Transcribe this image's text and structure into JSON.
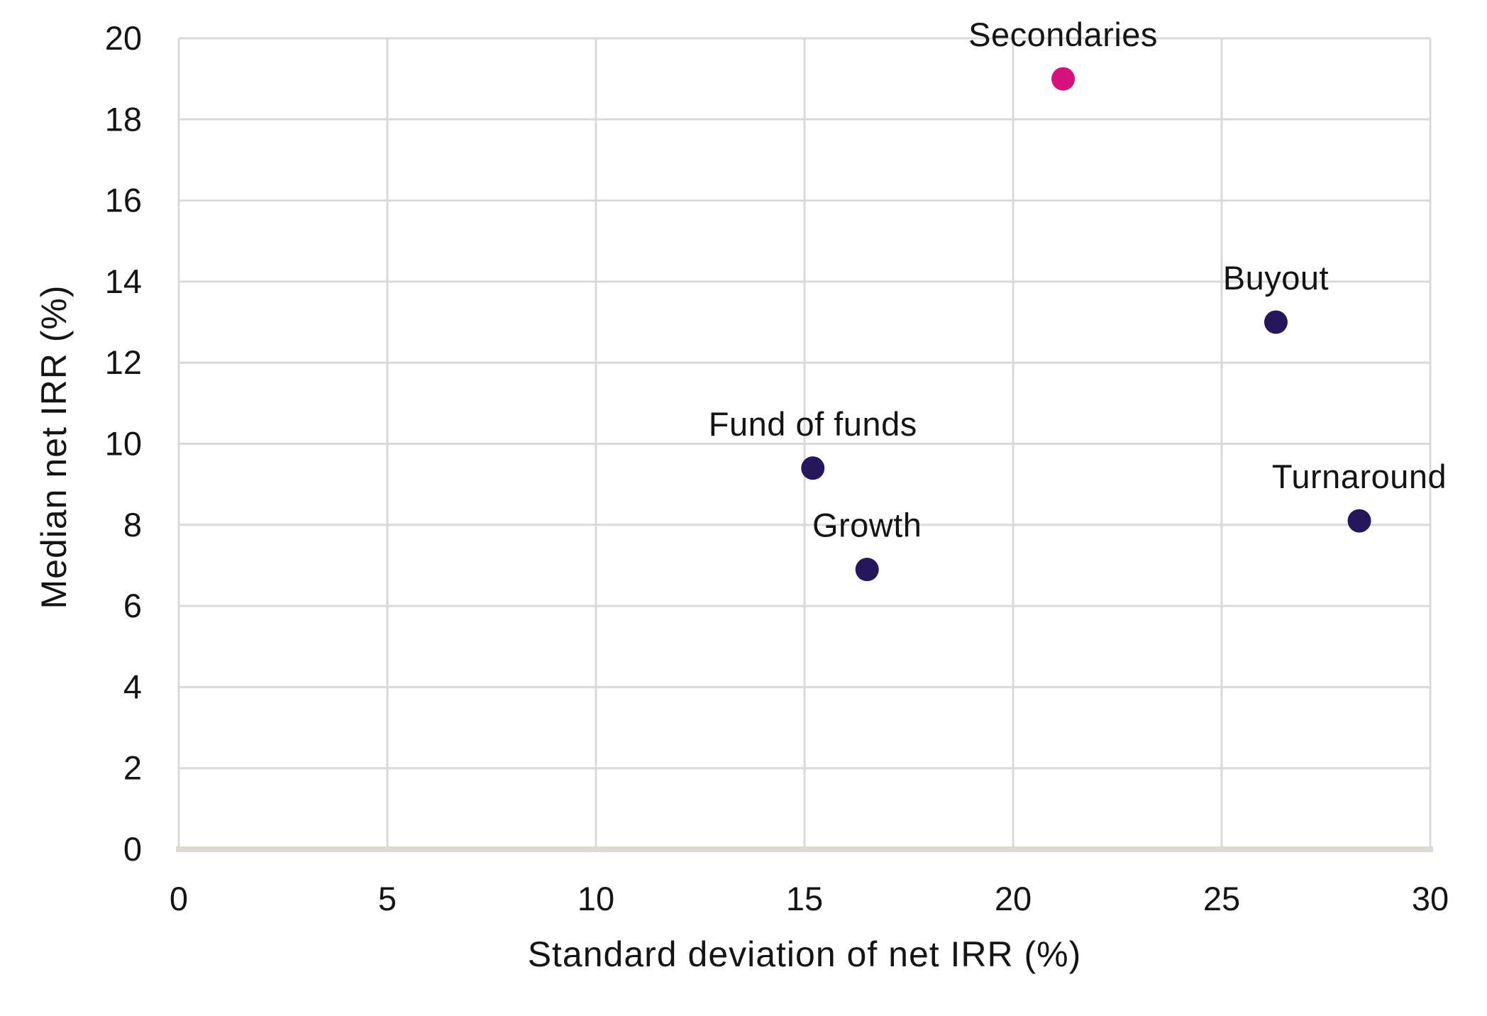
{
  "chart_data": {
    "type": "scatter",
    "title": "",
    "xlabel": "Standard deviation of net IRR (%)",
    "ylabel": "Median net IRR (%)",
    "xlim": [
      0,
      30
    ],
    "ylim": [
      0,
      20
    ],
    "grid": true,
    "legend_position": "none",
    "x_ticks": [
      0,
      5,
      10,
      15,
      20,
      25,
      30
    ],
    "x_tick_labels": [
      "0",
      "5",
      "10",
      "15",
      "20",
      "25",
      "30"
    ],
    "y_ticks": [
      0,
      2,
      4,
      6,
      8,
      10,
      12,
      14,
      16,
      18,
      20
    ],
    "y_tick_labels": [
      "0",
      "2",
      "4",
      "6",
      "8",
      "10",
      "12",
      "14",
      "16",
      "18",
      "20"
    ],
    "points": [
      {
        "label": "Fund of funds",
        "x": 15.2,
        "y": 9.4,
        "color": "#26175a"
      },
      {
        "label": "Growth",
        "x": 16.5,
        "y": 6.9,
        "color": "#26175a"
      },
      {
        "label": "Secondaries",
        "x": 21.2,
        "y": 19.0,
        "color": "#d6117e"
      },
      {
        "label": "Buyout",
        "x": 26.3,
        "y": 13.0,
        "color": "#26175a"
      },
      {
        "label": "Turnaround",
        "x": 28.3,
        "y": 8.1,
        "color": "#26175a"
      }
    ]
  },
  "colors": {
    "background": "#ffffff",
    "gridline": "#d9d9d9",
    "axis_line": "#dedad3",
    "text": "#141414",
    "dot_primary": "#26175a",
    "dot_highlight": "#d6117e"
  }
}
